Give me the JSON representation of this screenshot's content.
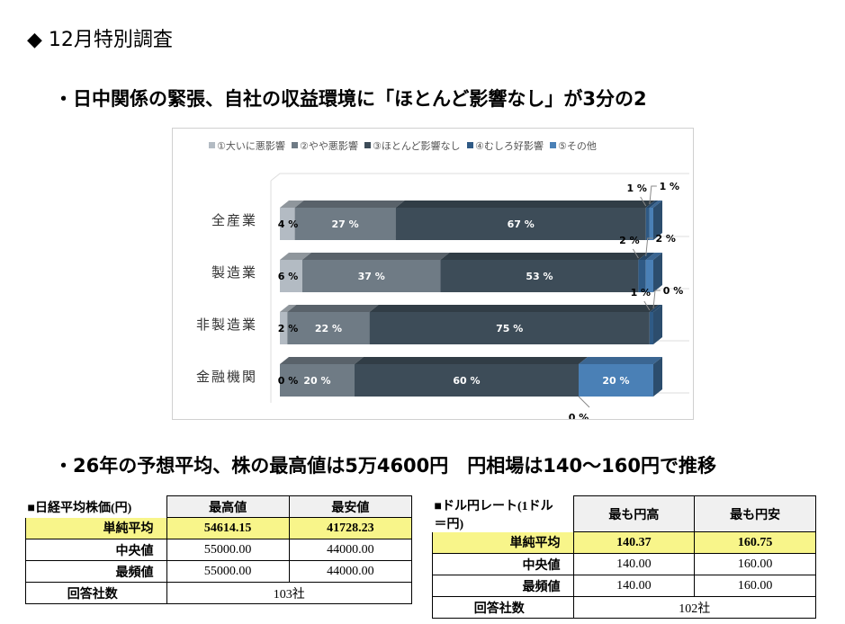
{
  "title": "◆ 12月特別調査",
  "heading1": "・日中関係の緊張、自社の収益環境に「ほとんど影響なし」が3分の2",
  "heading2": "・26年の予想平均、株の最高値は5万4600円　円相場は140～160円で推移",
  "chart_data": {
    "type": "bar",
    "orientation": "horizontal-stacked-100-3d",
    "categories": [
      "全産業",
      "製造業",
      "非製造業",
      "金融機関"
    ],
    "series": [
      {
        "name": "①大いに悪影響",
        "color": "#b3bbc3",
        "values": [
          4,
          6,
          2,
          0
        ]
      },
      {
        "name": "②やや悪影響",
        "color": "#6f7b85",
        "values": [
          27,
          37,
          22,
          20
        ]
      },
      {
        "name": "③ほとんど影響なし",
        "color": "#3d4c58",
        "values": [
          67,
          53,
          75,
          60
        ]
      },
      {
        "name": "④むしろ好影響",
        "color": "#2f5a85",
        "values": [
          1,
          2,
          1,
          0
        ]
      },
      {
        "name": "⑤その他",
        "color": "#4a80b6",
        "values": [
          1,
          2,
          0,
          20
        ]
      }
    ],
    "unit": "%",
    "legend": "top"
  },
  "nikkei": {
    "title": "■日経平均株価(円)",
    "cols": [
      "最高値",
      "最安値"
    ],
    "rows": [
      {
        "label": "単純平均",
        "v": [
          "54614.15",
          "41728.23"
        ]
      },
      {
        "label": "中央値",
        "v": [
          "55000.00",
          "44000.00"
        ]
      },
      {
        "label": "最頻値",
        "v": [
          "55000.00",
          "44000.00"
        ]
      }
    ],
    "count_label": "回答社数",
    "count": "103社"
  },
  "fx": {
    "title": "■ドル円レート(1ドル＝円)",
    "cols": [
      "最も円高",
      "最も円安"
    ],
    "rows": [
      {
        "label": "単純平均",
        "v": [
          "140.37",
          "160.75"
        ]
      },
      {
        "label": "中央値",
        "v": [
          "140.00",
          "160.00"
        ]
      },
      {
        "label": "最頻値",
        "v": [
          "140.00",
          "160.00"
        ]
      }
    ],
    "count_label": "回答社数",
    "count": "102社"
  }
}
